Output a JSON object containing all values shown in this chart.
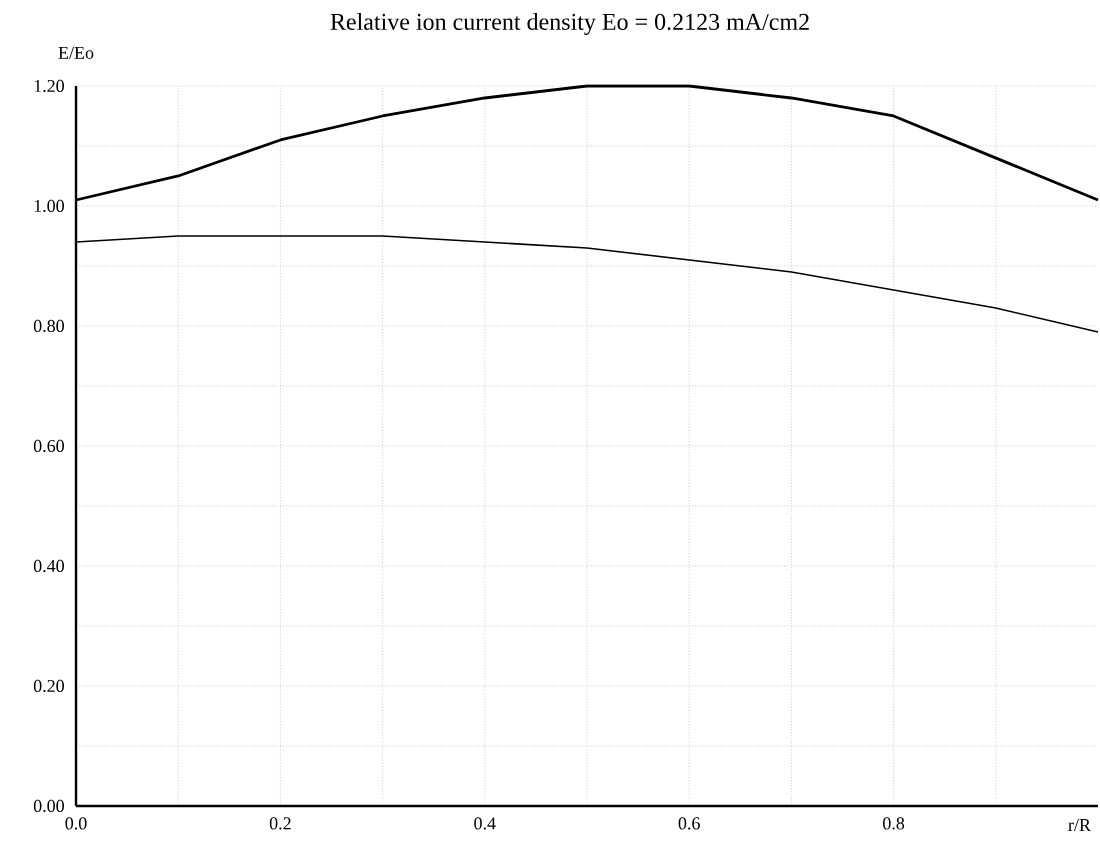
{
  "chart_data": {
    "type": "line",
    "title": "Relative ion current density   Eo = 0.2123 mA/cm2",
    "xlabel": "r/R",
    "ylabel": "E/Eo",
    "x": [
      0,
      0.1,
      0.2,
      0.3,
      0.4,
      0.5,
      0.6,
      0.7,
      0.8,
      0.9,
      1.0
    ],
    "series": [
      {
        "color": "#000000",
        "values": [
          1.01,
          1.05,
          1.11,
          1.15,
          1.18,
          1.2,
          1.2,
          1.18,
          1.15,
          1.08,
          1.01
        ]
      },
      {
        "color": "#000000",
        "values": [
          0.94,
          0.95,
          0.95,
          0.95,
          0.94,
          0.93,
          0.91,
          0.89,
          0.86,
          0.83,
          0.79
        ]
      }
    ],
    "xlim": [
      0,
      1.0
    ],
    "ylim": [
      0,
      1.2
    ],
    "xticks": [
      {
        "value": 0,
        "label": "0.0"
      },
      {
        "value": 0.1,
        "label": null
      },
      0.2,
      {
        "value": 0.3,
        "label": null
      },
      0.4,
      {
        "value": 0.5,
        "label": null
      },
      0.6,
      {
        "value": 0.7,
        "label": null
      },
      0.8,
      {
        "value": 0.9,
        "label": null
      }
    ],
    "yticks": [
      {
        "value": 0,
        "label": "0.00"
      },
      {
        "value": 0.1,
        "label": null
      },
      {
        "value": 0.2,
        "label": "0.20"
      },
      {
        "value": 0.3,
        "label": null
      },
      {
        "value": 0.4,
        "label": "0.40"
      },
      {
        "value": 0.5,
        "label": null
      },
      {
        "value": 0.6,
        "label": "0.60"
      },
      {
        "value": 0.7,
        "label": null
      },
      {
        "value": 0.8,
        "label": "0.80"
      },
      {
        "value": 0.9,
        "label": null
      },
      {
        "value": 1,
        "label": "1.00"
      },
      {
        "value": 1.1,
        "label": null
      },
      {
        "value": 1.2,
        "label": "1.20"
      }
    ],
    "grid": true,
    "marker": "none",
    "line_style": "solid"
  }
}
